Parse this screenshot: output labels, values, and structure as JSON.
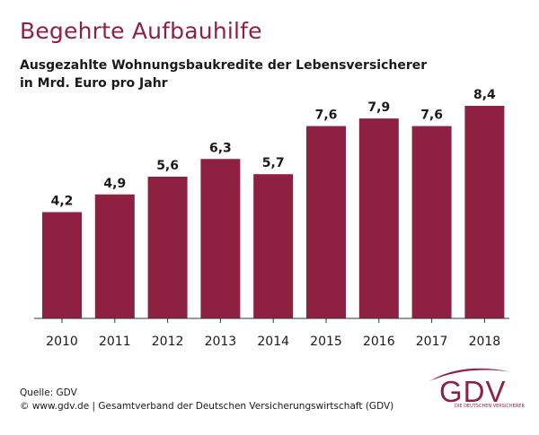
{
  "title": "Begehrte Aufbauhilfe",
  "subtitle_line1": "Ausgezahlte Wohnungsbaukredite der Lebensversicherer",
  "subtitle_line2": "in Mrd. Euro pro Jahr",
  "footer_source": "Quelle: GDV",
  "footer_copyright": "© www.gdv.de | Gesamtverband der Deutschen Versicherungswirtschaft (GDV)",
  "logo_text": "GDV",
  "logo_subtext": "DIE DEUTSCHEN VERSICHERER",
  "colors": {
    "bar": "#8e2141",
    "title": "#8e2141",
    "axis": "#333333"
  },
  "chart_data": {
    "type": "bar",
    "categories": [
      "2010",
      "2011",
      "2012",
      "2013",
      "2014",
      "2015",
      "2016",
      "2017",
      "2018"
    ],
    "values": [
      4.2,
      4.9,
      5.6,
      6.3,
      5.7,
      7.6,
      7.9,
      7.6,
      8.4
    ],
    "value_labels": [
      "4,2",
      "4,9",
      "5,6",
      "6,3",
      "5,7",
      "7,6",
      "7,9",
      "7,6",
      "8,4"
    ],
    "title": "Begehrte Aufbauhilfe",
    "subtitle": "Ausgezahlte Wohnungsbaukredite der Lebensversicherer in Mrd. Euro pro Jahr",
    "xlabel": "",
    "ylabel": "",
    "ylim": [
      0,
      8.4
    ],
    "grid": false,
    "legend": "none"
  }
}
